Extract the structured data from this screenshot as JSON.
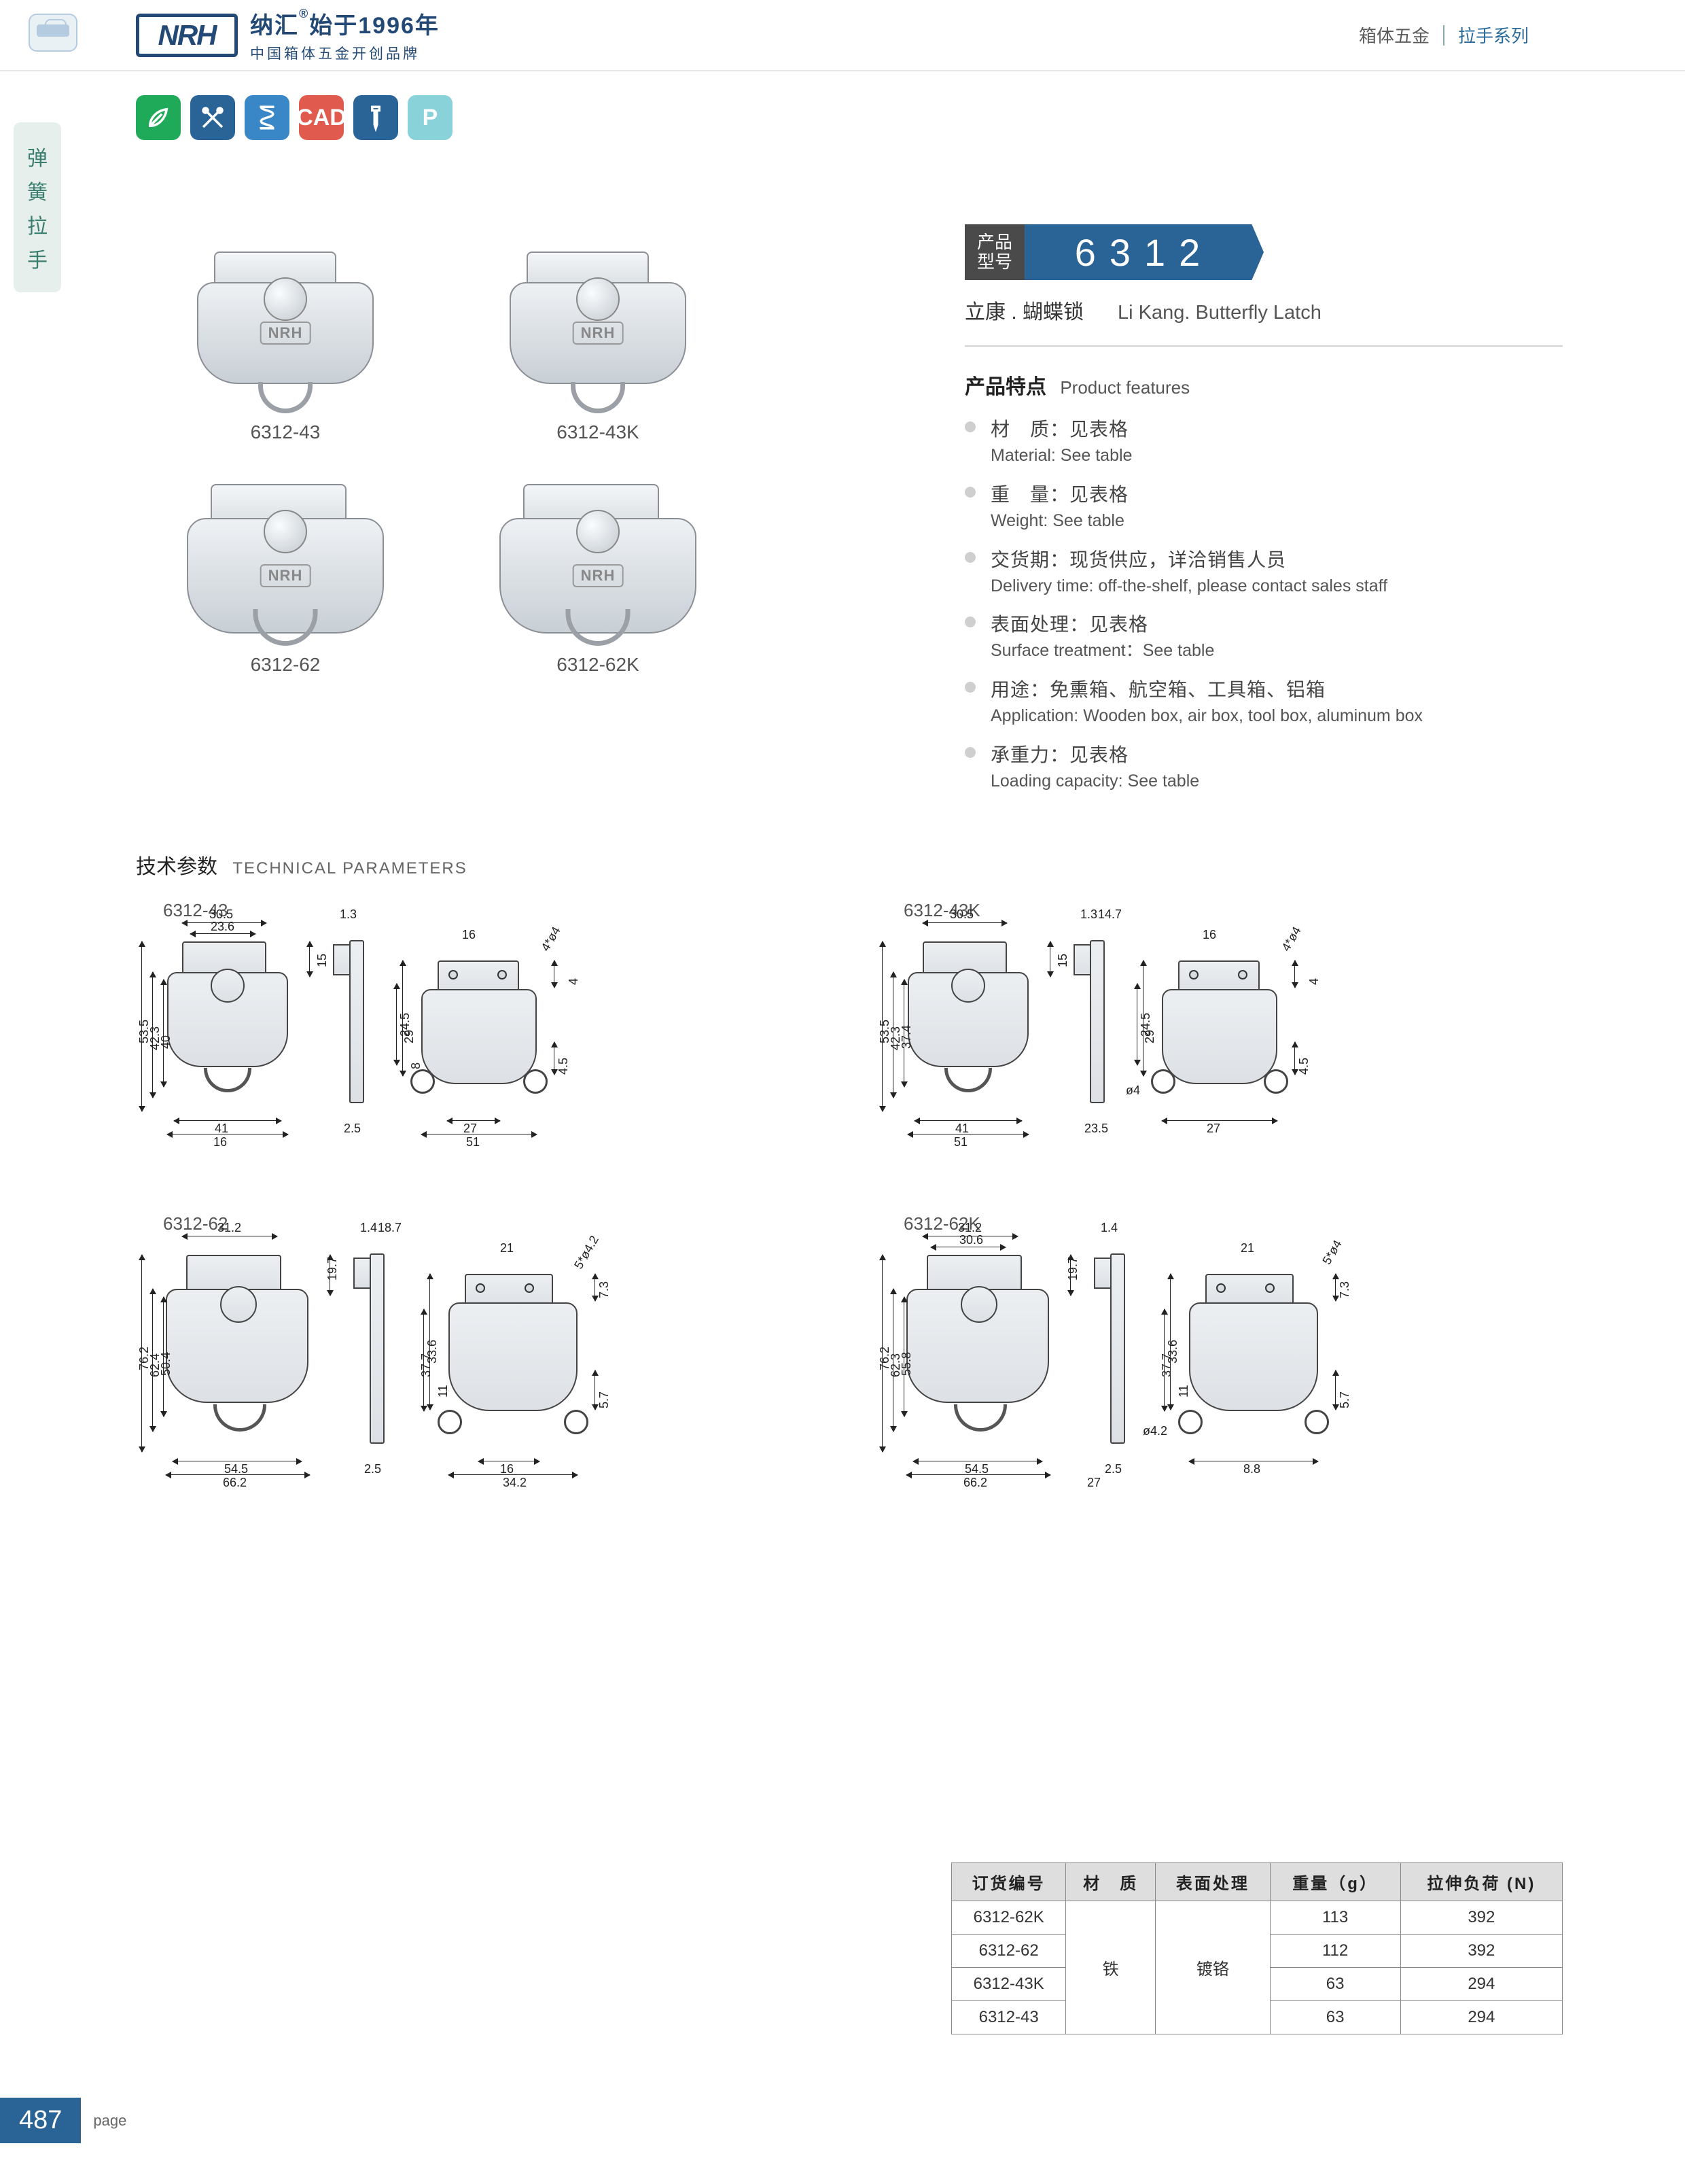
{
  "header": {
    "logo_text": "NRH",
    "brand_cn": "纳汇",
    "brand_since": "始于1996年",
    "brand_sub": "中国箱体五金开创品牌",
    "right_category": "箱体五金",
    "right_series": "拉手系列"
  },
  "side_tab": {
    "c1": "弹",
    "c2": "簧",
    "c3": "拉",
    "c4": "手"
  },
  "icons": [
    {
      "name": "eco-icon",
      "bg": "#1faa59",
      "glyph": "leaf"
    },
    {
      "name": "tools-icon",
      "bg": "#2a6396",
      "glyph": "cross-tools"
    },
    {
      "name": "spring-icon",
      "bg": "#3a87c8",
      "glyph": "spring"
    },
    {
      "name": "cad-icon",
      "bg": "#e05a4e",
      "glyph": "CAD"
    },
    {
      "name": "screw-icon",
      "bg": "#2a6396",
      "glyph": "screw"
    },
    {
      "name": "param-icon",
      "bg": "#89d2da",
      "glyph": "P"
    }
  ],
  "products": [
    {
      "code": "6312-43",
      "size": "small"
    },
    {
      "code": "6312-43K",
      "size": "small"
    },
    {
      "code": "6312-62",
      "size": "large"
    },
    {
      "code": "6312-62K",
      "size": "large"
    }
  ],
  "info": {
    "model_label_l1": "产品",
    "model_label_l2": "型号",
    "model_number": "6312",
    "subtitle_cn": "立康 . 蝴蝶锁",
    "subtitle_en": "Li Kang. Butterfly Latch",
    "features_title_cn": "产品特点",
    "features_title_en": "Product features",
    "features": [
      {
        "cn": "材　质：见表格",
        "en": "Material: See table"
      },
      {
        "cn": "重　量：见表格",
        "en": "Weight: See table"
      },
      {
        "cn": "交货期：现货供应，详洽销售人员",
        "en": "Delivery time: off-the-shelf, please contact sales staff"
      },
      {
        "cn": "表面处理：见表格",
        "en": "Surface treatment：See table"
      },
      {
        "cn": "用途：免熏箱、航空箱、工具箱、铝箱",
        "en": "Application: Wooden box, air box, tool box, aluminum box"
      },
      {
        "cn": "承重力：见表格",
        "en": "Loading capacity: See table"
      }
    ]
  },
  "tech": {
    "title_cn": "技术参数",
    "title_en": "TECHNICAL PARAMETERS",
    "drawings": [
      {
        "code": "6312-43",
        "size": "small",
        "dims": {
          "plate_w": "30.5",
          "plate_iw": "23.6",
          "side_t": "1.3",
          "h_total": "53.5",
          "h_body": "42.3",
          "h_inner": "40",
          "body_w": "41",
          "plate_bw": "16",
          "side_g": "2.5",
          "side_h": "29",
          "plate_h": "15",
          "top_w": "51",
          "top_iw": "27",
          "top_t": "16",
          "top_hole": "4*ø4",
          "top_ph": "24.5",
          "top_p": "8",
          "top_r": "4.5",
          "top_a": "4"
        }
      },
      {
        "code": "6312-43K",
        "size": "small",
        "dims": {
          "plate_w": "30.5",
          "side_t": "1.3",
          "side_ext": "14.7",
          "h_total": "53.5",
          "h_body": "42.3",
          "h_inner": "37.4",
          "body_w": "41",
          "plate_bw": "51",
          "plate_h": "15",
          "side_h": "29",
          "side_g": "23.5",
          "side_hole": "ø4",
          "top_w": "27",
          "top_t": "16",
          "top_hole": "4*ø4",
          "top_ph": "24.5",
          "top_r": "4.5",
          "top_a": "4"
        }
      },
      {
        "code": "6312-62",
        "size": "large",
        "dims": {
          "plate_w": "31.2",
          "side_t": "1.4",
          "side_ext": "18.7",
          "h_total": "76.2",
          "h_body": "62.4",
          "h_inner": "50.4",
          "body_w": "54.5",
          "plate_bw": "66.2",
          "plate_h": "19.7",
          "side_h": "37.7",
          "side_g": "2.5",
          "top_w": "34.2",
          "top_iw": "16",
          "top_t": "21",
          "top_ph": "33.6",
          "top_p": "11",
          "top_r": "5.7",
          "top_a": "7.3",
          "top_hole": "5*ø4.2"
        }
      },
      {
        "code": "6312-62K",
        "size": "large",
        "dims": {
          "plate_w": "31.2",
          "plate_iw": "30.6",
          "side_t": "1.4",
          "h_total": "76.2",
          "h_body": "62.3",
          "h_inner": "55.8",
          "body_w": "54.5",
          "plate_bw": "66.2",
          "plate_h": "19.7",
          "side_h": "37.7",
          "side_g": "2.5",
          "side_b": "27",
          "side_hole": "ø4.2",
          "top_w": "8.8",
          "top_t": "21",
          "top_ph": "33.6",
          "top_p": "11",
          "top_r": "5.7",
          "top_a": "7.3",
          "top_hole": "5*ø4"
        }
      }
    ]
  },
  "spec_table": {
    "headers": [
      "订货编号",
      "材　质",
      "表面处理",
      "重量（g）",
      "拉伸负荷 (N)"
    ],
    "material": "铁",
    "surface": "镀铬",
    "rows": [
      {
        "code": "6312-62K",
        "weight": "113",
        "load": "392"
      },
      {
        "code": "6312-62",
        "weight": "112",
        "load": "392"
      },
      {
        "code": "6312-43K",
        "weight": "63",
        "load": "294"
      },
      {
        "code": "6312-43",
        "weight": "63",
        "load": "294"
      }
    ]
  },
  "footer": {
    "page_num": "487",
    "page_label": "page"
  }
}
